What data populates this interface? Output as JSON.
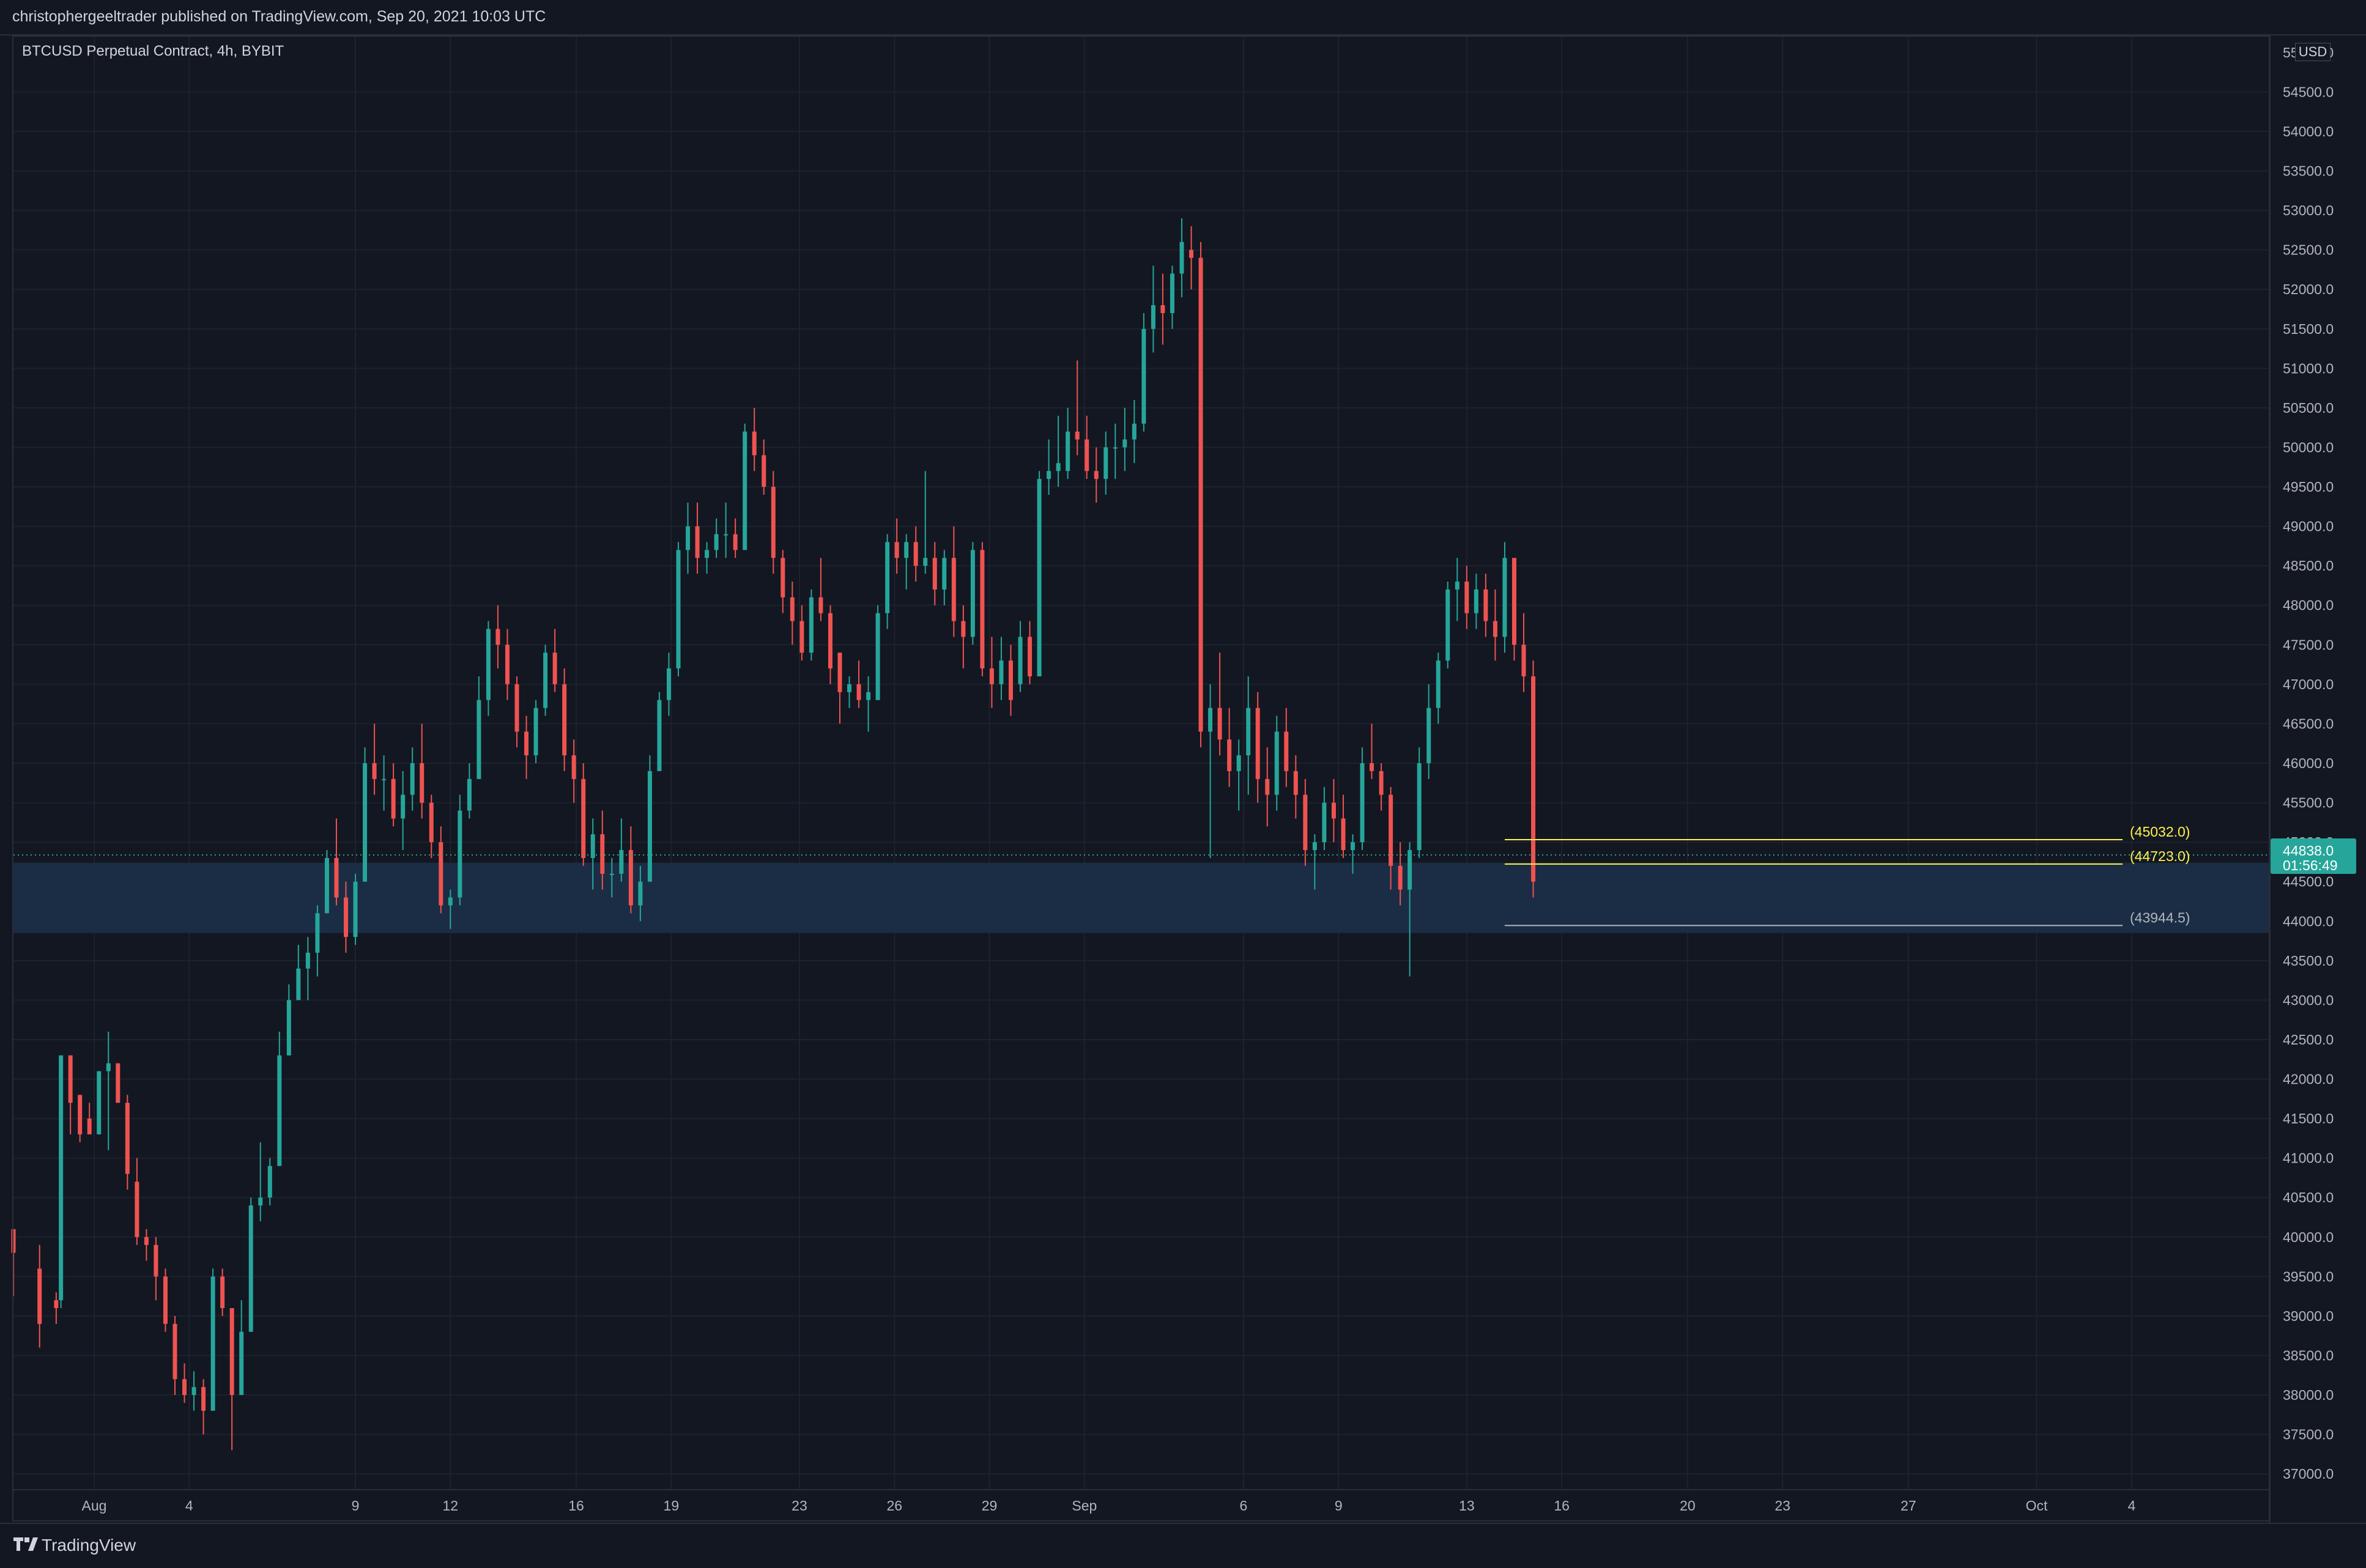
{
  "header": {
    "text": "christophergeeltrader published on TradingView.com, Sep 20, 2021 10:03 UTC"
  },
  "footer": {
    "brand": "TradingView"
  },
  "chart_data": {
    "type": "candlestick",
    "symbol_title": "BTCUSD Perpetual Contract, 4h, BYBIT",
    "currency": "USD",
    "interval": "4h",
    "ylim": [
      36800,
      55200
    ],
    "xlim": [
      0,
      95
    ],
    "y_ticks": [
      37000,
      37500,
      38000,
      38500,
      39000,
      39500,
      40000,
      40500,
      41000,
      41500,
      42000,
      42500,
      43000,
      43500,
      44000,
      44500,
      45000,
      45500,
      46000,
      46500,
      47000,
      47500,
      48000,
      48500,
      49000,
      49500,
      50000,
      50500,
      51000,
      51500,
      52000,
      52500,
      53000,
      53500,
      54000,
      54500
    ],
    "y_tick_labels": [
      "37000.0",
      "37500.0",
      "38000.0",
      "38500.0",
      "39000.0",
      "39500.0",
      "40000.0",
      "40500.0",
      "41000.0",
      "41500.0",
      "42000.0",
      "42500.0",
      "43000.0",
      "43500.0",
      "44000.0",
      "44500.0",
      "45000.0",
      "45500.0",
      "46000.0",
      "46500.0",
      "47000.0",
      "47500.0",
      "48000.0",
      "48500.0",
      "49000.0",
      "49500.0",
      "50000.0",
      "50500.0",
      "51000.0",
      "51500.0",
      "52000.0",
      "52500.0",
      "53000.0",
      "53500.0",
      "54000.0",
      "54500.0"
    ],
    "top_tick_label": "55000.0",
    "x_ticks": [
      {
        "day": 3.4,
        "label": "Aug"
      },
      {
        "day": 7.4,
        "label": "4"
      },
      {
        "day": 14.4,
        "label": "9"
      },
      {
        "day": 18.4,
        "label": "12"
      },
      {
        "day": 23.7,
        "label": "16"
      },
      {
        "day": 27.7,
        "label": "19"
      },
      {
        "day": 33.1,
        "label": "23"
      },
      {
        "day": 37.1,
        "label": "26"
      },
      {
        "day": 41.1,
        "label": "29"
      },
      {
        "day": 45.1,
        "label": "Sep"
      },
      {
        "day": 51.8,
        "label": "6"
      },
      {
        "day": 55.8,
        "label": "9"
      },
      {
        "day": 61.2,
        "label": "13"
      },
      {
        "day": 65.2,
        "label": "16"
      },
      {
        "day": 70.5,
        "label": "20"
      },
      {
        "day": 74.5,
        "label": "23"
      },
      {
        "day": 79.8,
        "label": "27"
      },
      {
        "day": 85.2,
        "label": "Oct"
      },
      {
        "day": 89.2,
        "label": "4"
      }
    ],
    "ohlc": [
      [
        0.0,
        40100,
        39250,
        40100,
        39800
      ],
      [
        1.1,
        39900,
        38600,
        39600,
        38900
      ],
      [
        1.8,
        39300,
        38900,
        39200,
        39100
      ],
      [
        2.0,
        42300,
        39100,
        39200,
        42300
      ],
      [
        2.4,
        42300,
        41300,
        42300,
        41700
      ],
      [
        2.8,
        41700,
        41200,
        41800,
        41300
      ],
      [
        3.2,
        41700,
        41300,
        41500,
        41300
      ],
      [
        3.6,
        42100,
        41300,
        41300,
        42100
      ],
      [
        4.0,
        42600,
        41100,
        42100,
        42200
      ],
      [
        4.4,
        42200,
        41700,
        42200,
        41700
      ],
      [
        4.8,
        41800,
        40600,
        41700,
        40800
      ],
      [
        5.2,
        41000,
        39900,
        40700,
        40000
      ],
      [
        5.6,
        40100,
        39700,
        40000,
        39900
      ],
      [
        6.0,
        40000,
        39200,
        39900,
        39500
      ],
      [
        6.4,
        39600,
        38800,
        39500,
        38900
      ],
      [
        6.8,
        39000,
        38000,
        38900,
        38200
      ],
      [
        7.2,
        38400,
        37900,
        38200,
        38000
      ],
      [
        7.6,
        38300,
        37800,
        38000,
        38100
      ],
      [
        8.0,
        38200,
        37500,
        38100,
        37800
      ],
      [
        8.4,
        39600,
        37800,
        37800,
        39500
      ],
      [
        8.8,
        39600,
        39000,
        39500,
        39100
      ],
      [
        9.2,
        39100,
        37300,
        39100,
        38000
      ],
      [
        9.6,
        39200,
        38000,
        38000,
        38800
      ],
      [
        10.0,
        40500,
        38800,
        38800,
        40400
      ],
      [
        10.4,
        41200,
        40200,
        40400,
        40500
      ],
      [
        10.8,
        41000,
        40400,
        40500,
        40900
      ],
      [
        11.2,
        42600,
        40900,
        40900,
        42300
      ],
      [
        11.6,
        43200,
        42300,
        42300,
        43000
      ],
      [
        12.0,
        43700,
        43000,
        43000,
        43400
      ],
      [
        12.4,
        43800,
        43000,
        43400,
        43600
      ],
      [
        12.8,
        44200,
        43300,
        43600,
        44100
      ],
      [
        13.2,
        44900,
        44100,
        44100,
        44800
      ],
      [
        13.6,
        45300,
        44200,
        44800,
        44300
      ],
      [
        14.0,
        44500,
        43600,
        44300,
        43800
      ],
      [
        14.4,
        44600,
        43700,
        43800,
        44500
      ],
      [
        14.8,
        46200,
        44500,
        44500,
        46000
      ],
      [
        15.2,
        46500,
        45600,
        46000,
        45800
      ],
      [
        15.6,
        46100,
        45400,
        45800,
        45800
      ],
      [
        16.0,
        46000,
        45200,
        45800,
        45300
      ],
      [
        16.4,
        45900,
        44900,
        45300,
        45600
      ],
      [
        16.8,
        46200,
        45400,
        45600,
        46000
      ],
      [
        17.2,
        46500,
        45300,
        46000,
        45500
      ],
      [
        17.6,
        45600,
        44800,
        45500,
        45000
      ],
      [
        18.0,
        45200,
        44100,
        45000,
        44200
      ],
      [
        18.4,
        44400,
        43900,
        44200,
        44300
      ],
      [
        18.8,
        45600,
        44200,
        44300,
        45400
      ],
      [
        19.2,
        46000,
        45300,
        45400,
        45800
      ],
      [
        19.6,
        47100,
        45800,
        45800,
        46800
      ],
      [
        20.0,
        47800,
        46600,
        46800,
        47700
      ],
      [
        20.4,
        48000,
        47200,
        47700,
        47500
      ],
      [
        20.8,
        47700,
        46800,
        47500,
        47000
      ],
      [
        21.2,
        47100,
        46200,
        47000,
        46400
      ],
      [
        21.6,
        46600,
        45800,
        46400,
        46100
      ],
      [
        22.0,
        46800,
        46000,
        46100,
        46700
      ],
      [
        22.4,
        47500,
        46600,
        46700,
        47400
      ],
      [
        22.8,
        47700,
        46900,
        47400,
        47000
      ],
      [
        23.2,
        47200,
        45900,
        47000,
        46100
      ],
      [
        23.6,
        46300,
        45500,
        46100,
        45800
      ],
      [
        24.0,
        46000,
        44700,
        45800,
        44800
      ],
      [
        24.4,
        45300,
        44400,
        44800,
        45100
      ],
      [
        24.8,
        45400,
        44400,
        45100,
        44600
      ],
      [
        25.2,
        44800,
        44300,
        44600,
        44600
      ],
      [
        25.6,
        45300,
        44500,
        44600,
        44900
      ],
      [
        26.0,
        45200,
        44100,
        44900,
        44200
      ],
      [
        26.4,
        44700,
        44000,
        44200,
        44500
      ],
      [
        26.8,
        46100,
        44500,
        44500,
        45900
      ],
      [
        27.2,
        46900,
        45900,
        45900,
        46800
      ],
      [
        27.6,
        47400,
        46600,
        46800,
        47200
      ],
      [
        28.0,
        48800,
        47100,
        47200,
        48700
      ],
      [
        28.4,
        49300,
        48400,
        48700,
        49000
      ],
      [
        28.8,
        49300,
        48400,
        49000,
        48600
      ],
      [
        29.2,
        48800,
        48400,
        48600,
        48700
      ],
      [
        29.6,
        49100,
        48600,
        48700,
        48900
      ],
      [
        30.0,
        49300,
        48600,
        48900,
        48900
      ],
      [
        30.4,
        49100,
        48600,
        48900,
        48700
      ],
      [
        30.8,
        50300,
        48700,
        48700,
        50200
      ],
      [
        31.2,
        50500,
        49700,
        50200,
        49900
      ],
      [
        31.6,
        50100,
        49400,
        49900,
        49500
      ],
      [
        32.0,
        49700,
        48400,
        49500,
        48600
      ],
      [
        32.4,
        48700,
        47900,
        48600,
        48100
      ],
      [
        32.8,
        48300,
        47500,
        48100,
        47800
      ],
      [
        33.2,
        48000,
        47300,
        47800,
        47400
      ],
      [
        33.6,
        48200,
        47300,
        47400,
        48100
      ],
      [
        34.0,
        48600,
        47800,
        48100,
        47900
      ],
      [
        34.4,
        48000,
        47000,
        47900,
        47200
      ],
      [
        34.8,
        47400,
        46500,
        47400,
        46900
      ],
      [
        35.2,
        47100,
        46700,
        46900,
        47000
      ],
      [
        35.6,
        47300,
        46700,
        47000,
        46800
      ],
      [
        36.0,
        47100,
        46400,
        46800,
        46900
      ],
      [
        36.4,
        48000,
        46800,
        46800,
        47900
      ],
      [
        36.8,
        48900,
        47700,
        47900,
        48800
      ],
      [
        37.2,
        49100,
        48400,
        48800,
        48600
      ],
      [
        37.6,
        48900,
        48200,
        48600,
        48800
      ],
      [
        38.0,
        49000,
        48300,
        48800,
        48500
      ],
      [
        38.4,
        49700,
        48400,
        48500,
        48600
      ],
      [
        38.8,
        48800,
        48000,
        48600,
        48200
      ],
      [
        39.2,
        48700,
        48000,
        48200,
        48600
      ],
      [
        39.6,
        49000,
        47600,
        48600,
        47800
      ],
      [
        40.0,
        48000,
        47200,
        47800,
        47600
      ],
      [
        40.4,
        48800,
        47500,
        47600,
        48700
      ],
      [
        40.8,
        48800,
        47100,
        48700,
        47200
      ],
      [
        41.2,
        47600,
        46700,
        47200,
        47000
      ],
      [
        41.6,
        47600,
        46800,
        47000,
        47300
      ],
      [
        42.0,
        47500,
        46600,
        47300,
        46800
      ],
      [
        42.4,
        47800,
        46900,
        47000,
        47600
      ],
      [
        42.8,
        47800,
        47000,
        47600,
        47100
      ],
      [
        43.2,
        49700,
        47100,
        47100,
        49600
      ],
      [
        43.6,
        50100,
        49400,
        49600,
        49700
      ],
      [
        44.0,
        50400,
        49500,
        49700,
        49800
      ],
      [
        44.4,
        50500,
        49600,
        49700,
        50200
      ],
      [
        44.8,
        51100,
        49900,
        50200,
        50100
      ],
      [
        45.2,
        50400,
        49600,
        50100,
        49700
      ],
      [
        45.6,
        50000,
        49300,
        49700,
        49600
      ],
      [
        46.0,
        50200,
        49400,
        49600,
        50000
      ],
      [
        46.4,
        50300,
        49600,
        50000,
        50000
      ],
      [
        46.8,
        50500,
        49700,
        50000,
        50100
      ],
      [
        47.2,
        50600,
        49800,
        50100,
        50300
      ],
      [
        47.6,
        51700,
        50200,
        50300,
        51500
      ],
      [
        48.0,
        52300,
        51200,
        51500,
        51800
      ],
      [
        48.4,
        52200,
        51300,
        51800,
        51700
      ],
      [
        48.8,
        52300,
        51500,
        51700,
        52200
      ],
      [
        49.2,
        52900,
        51900,
        52200,
        52600
      ],
      [
        49.6,
        52800,
        52000,
        52500,
        52400
      ],
      [
        50.0,
        52600,
        46200,
        52400,
        46400
      ],
      [
        50.4,
        47000,
        44800,
        46400,
        46700
      ],
      [
        50.8,
        47400,
        46100,
        46700,
        46300
      ],
      [
        51.2,
        46700,
        45700,
        46300,
        45900
      ],
      [
        51.6,
        46300,
        45400,
        45900,
        46100
      ],
      [
        52.0,
        47100,
        45600,
        46100,
        46700
      ],
      [
        52.4,
        46900,
        45500,
        46700,
        45800
      ],
      [
        52.8,
        46200,
        45200,
        45800,
        45600
      ],
      [
        53.2,
        46600,
        45400,
        45600,
        46400
      ],
      [
        53.6,
        46700,
        45700,
        46400,
        45900
      ],
      [
        54.0,
        46100,
        45300,
        45900,
        45600
      ],
      [
        54.4,
        45800,
        44700,
        45600,
        44900
      ],
      [
        54.8,
        45100,
        44400,
        44900,
        45000
      ],
      [
        55.2,
        45700,
        44900,
        45000,
        45500
      ],
      [
        55.6,
        45800,
        45000,
        45500,
        45300
      ],
      [
        56.0,
        45600,
        44800,
        45300,
        44900
      ],
      [
        56.4,
        45100,
        44600,
        44900,
        45000
      ],
      [
        56.8,
        46200,
        44900,
        45000,
        46000
      ],
      [
        57.2,
        46500,
        45800,
        46000,
        45900
      ],
      [
        57.6,
        46000,
        45400,
        45900,
        45600
      ],
      [
        58.0,
        45700,
        44400,
        45600,
        44700
      ],
      [
        58.4,
        45000,
        44200,
        44700,
        44400
      ],
      [
        58.8,
        45000,
        43300,
        44400,
        44900
      ],
      [
        59.2,
        46200,
        44800,
        44900,
        46000
      ],
      [
        59.6,
        47000,
        45800,
        46000,
        46700
      ],
      [
        60.0,
        47400,
        46500,
        46700,
        47300
      ],
      [
        60.4,
        48300,
        47200,
        47300,
        48200
      ],
      [
        60.8,
        48600,
        47800,
        48200,
        48300
      ],
      [
        61.2,
        48500,
        47700,
        48300,
        47900
      ],
      [
        61.6,
        48400,
        47700,
        47900,
        48200
      ],
      [
        62.0,
        48400,
        47600,
        48200,
        47800
      ],
      [
        62.4,
        48200,
        47300,
        47800,
        47600
      ],
      [
        62.8,
        48800,
        47400,
        47600,
        48600
      ],
      [
        63.2,
        48500,
        47300,
        48600,
        47500
      ],
      [
        63.6,
        47900,
        46900,
        47500,
        47100
      ],
      [
        64.0,
        47300,
        44300,
        47100,
        44500
      ]
    ],
    "support_zone": {
      "from": 43850,
      "to": 44740,
      "color": "#1a2e47"
    },
    "levels": [
      {
        "price": 45032.0,
        "label": "(45032.0)",
        "color": "#fff34d",
        "x_start": 62.8
      },
      {
        "price": 44723.0,
        "label": "(44723.0)",
        "color": "#fff34d",
        "x_start": 62.8
      },
      {
        "price": 43944.5,
        "label": "(43944.5)",
        "color": "#b2b5be",
        "x_start": 62.8
      }
    ],
    "last_price": {
      "price": 44838.0,
      "label": "44838.0",
      "countdown": "01:56:49",
      "color": "#26a69a"
    },
    "colors": {
      "up": "#26a69a",
      "down": "#ef5350",
      "background": "#131722",
      "grid": "#1e222d"
    }
  }
}
